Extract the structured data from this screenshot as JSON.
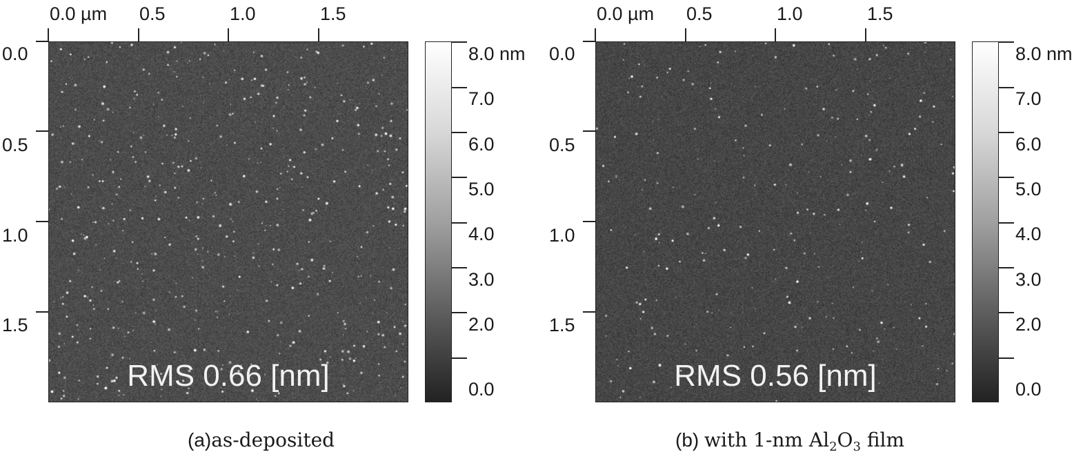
{
  "panels": [
    {
      "x_ticks": [
        "0.0 µm",
        "0.5",
        "1.0",
        "1.5"
      ],
      "y_ticks": [
        "0.0",
        "0.5",
        "1.0",
        "1.5"
      ],
      "colorbar_ticks": [
        "8.0 nm",
        "7.0",
        "6.0",
        "5.0",
        "4.0",
        "3.0",
        "2.0",
        "0.0"
      ],
      "rms_text": "RMS 0.66 [nm]",
      "caption_tag": "(a)",
      "caption_text": "as-deposited"
    },
    {
      "x_ticks": [
        "0.0 µm",
        "0.5",
        "1.0",
        "1.5"
      ],
      "y_ticks": [
        "0.0",
        "0.5",
        "1.0",
        "1.5"
      ],
      "colorbar_ticks": [
        "8.0 nm",
        "7.0",
        "6.0",
        "5.0",
        "4.0",
        "3.0",
        "2.0",
        "0.0"
      ],
      "rms_text": "RMS 0.56 [nm]",
      "caption_tag": "(b)",
      "caption_prefix": "with 1-nm Al",
      "caption_sub1": "2",
      "caption_mid": "O",
      "caption_sub2": "3",
      "caption_suffix": " film"
    }
  ],
  "image_appearance": {
    "base_gray": "#4a4a4a",
    "speckle_light": "#d8d8d8",
    "speckle_dark": "#2c2c2c"
  }
}
